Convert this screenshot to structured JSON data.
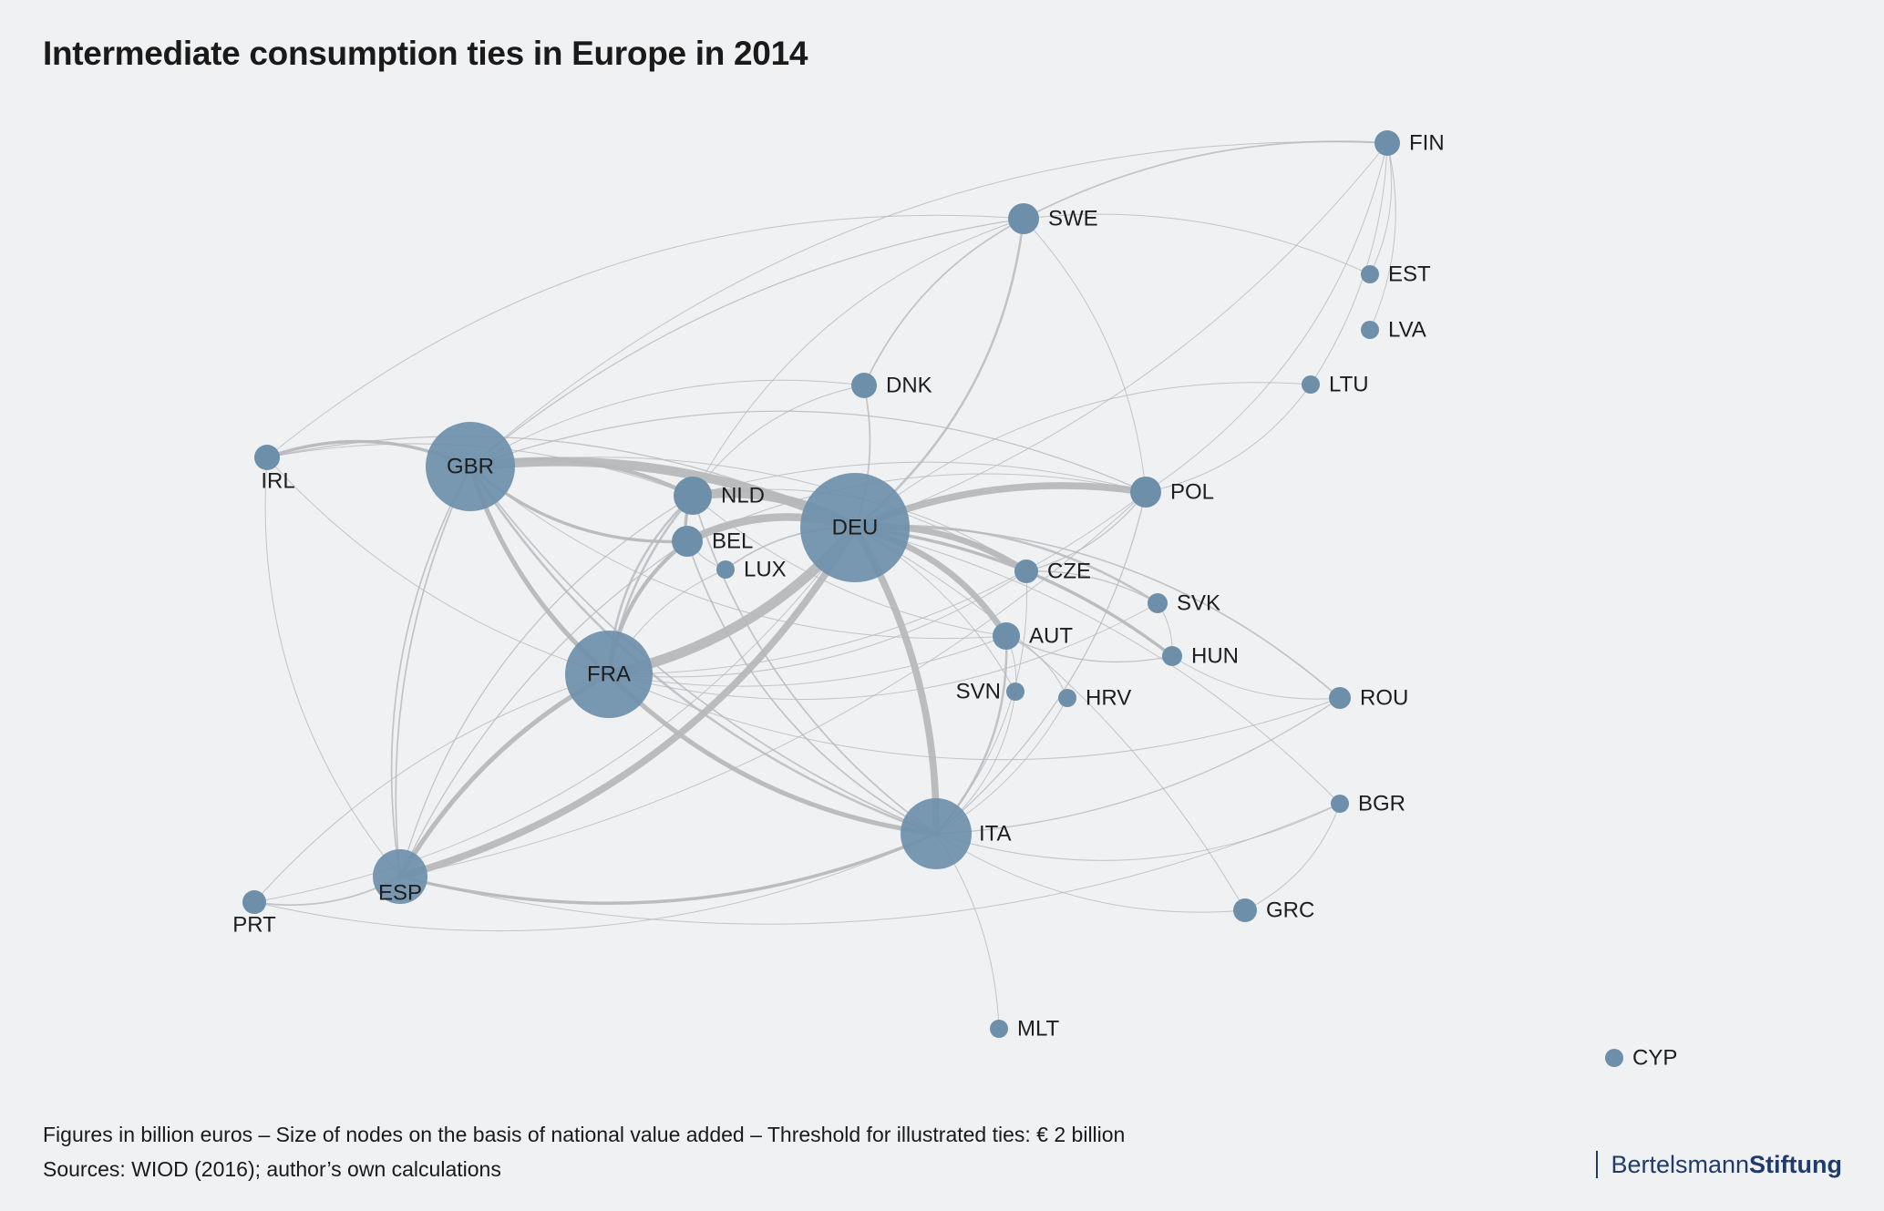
{
  "title": "Intermediate consumption ties in Europe in 2014",
  "footnote": {
    "line1": "Figures in billion euros – Size of nodes on the basis of national value added – Threshold for illustrated ties: € 2 billion",
    "line2": "Sources: WIOD (2016); author’s own calculations"
  },
  "brand": {
    "part1": "Bertelsmann",
    "part2": "Stiftung"
  },
  "colors": {
    "node": "#6e8faa",
    "edge": "#b6b8bb",
    "background": "#f0f1f3",
    "brand": "#1f3b6b"
  },
  "nodes": [
    {
      "id": "DEU",
      "label": "DEU",
      "size": 60
    },
    {
      "id": "GBR",
      "label": "GBR",
      "size": 49
    },
    {
      "id": "FRA",
      "label": "FRA",
      "size": 48
    },
    {
      "id": "ITA",
      "label": "ITA",
      "size": 39
    },
    {
      "id": "ESP",
      "label": "ESP",
      "size": 30
    },
    {
      "id": "NLD",
      "label": "NLD",
      "size": 21
    },
    {
      "id": "BEL",
      "label": "BEL",
      "size": 17
    },
    {
      "id": "SWE",
      "label": "SWE",
      "size": 17
    },
    {
      "id": "POL",
      "label": "POL",
      "size": 17
    },
    {
      "id": "AUT",
      "label": "AUT",
      "size": 15
    },
    {
      "id": "DNK",
      "label": "DNK",
      "size": 14
    },
    {
      "id": "FIN",
      "label": "FIN",
      "size": 14
    },
    {
      "id": "IRL",
      "label": "IRL",
      "size": 14
    },
    {
      "id": "PRT",
      "label": "PRT",
      "size": 13
    },
    {
      "id": "CZE",
      "label": "CZE",
      "size": 13
    },
    {
      "id": "GRC",
      "label": "GRC",
      "size": 13
    },
    {
      "id": "ROU",
      "label": "ROU",
      "size": 12
    },
    {
      "id": "HUN",
      "label": "HUN",
      "size": 11
    },
    {
      "id": "SVK",
      "label": "SVK",
      "size": 11
    },
    {
      "id": "LUX",
      "label": "LUX",
      "size": 10
    },
    {
      "id": "SVN",
      "label": "SVN",
      "size": 10
    },
    {
      "id": "HRV",
      "label": "HRV",
      "size": 10
    },
    {
      "id": "BGR",
      "label": "BGR",
      "size": 10
    },
    {
      "id": "EST",
      "label": "EST",
      "size": 10
    },
    {
      "id": "LVA",
      "label": "LVA",
      "size": 10
    },
    {
      "id": "LTU",
      "label": "LTU",
      "size": 10
    },
    {
      "id": "MLT",
      "label": "MLT",
      "size": 10
    },
    {
      "id": "CYP",
      "label": "CYP",
      "size": 10
    }
  ],
  "edges": [
    [
      "GBR",
      "DEU",
      12
    ],
    [
      "FRA",
      "DEU",
      13
    ],
    [
      "ESP",
      "DEU",
      9
    ],
    [
      "ITA",
      "DEU",
      9
    ],
    [
      "NLD",
      "DEU",
      12
    ],
    [
      "BEL",
      "DEU",
      10
    ],
    [
      "POL",
      "DEU",
      9
    ],
    [
      "CZE",
      "DEU",
      8
    ],
    [
      "AUT",
      "DEU",
      8
    ],
    [
      "GBR",
      "FRA",
      6
    ],
    [
      "GBR",
      "NLD",
      5
    ],
    [
      "GBR",
      "BEL",
      4
    ],
    [
      "FRA",
      "ESP",
      6
    ],
    [
      "FRA",
      "ITA",
      6
    ],
    [
      "FRA",
      "BEL",
      5
    ],
    [
      "FRA",
      "NLD",
      3
    ],
    [
      "ESP",
      "ITA",
      4
    ],
    [
      "GBR",
      "IRL",
      4
    ],
    [
      "GBR",
      "ESP",
      2
    ],
    [
      "GBR",
      "ITA",
      3
    ],
    [
      "ITA",
      "AUT",
      3
    ],
    [
      "DEU",
      "HUN",
      4
    ],
    [
      "DEU",
      "SVK",
      3
    ],
    [
      "DEU",
      "SWE",
      3
    ],
    [
      "DEU",
      "DNK",
      2
    ],
    [
      "DEU",
      "LUX",
      2
    ],
    [
      "DEU",
      "ROU",
      2
    ],
    [
      "DEU",
      "SVN",
      1
    ],
    [
      "NLD",
      "BEL",
      4
    ],
    [
      "NLD",
      "FRA",
      3
    ],
    [
      "SWE",
      "FIN",
      2
    ],
    [
      "SWE",
      "DNK",
      2
    ],
    [
      "SWE",
      "NLD",
      1
    ],
    [
      "SWE",
      "GBR",
      1.5
    ],
    [
      "SWE",
      "POL",
      1
    ],
    [
      "SWE",
      "IRL",
      0.8
    ],
    [
      "FIN",
      "DEU",
      1
    ],
    [
      "FIN",
      "EST",
      1
    ],
    [
      "FIN",
      "POL",
      1
    ],
    [
      "FIN",
      "LTU",
      1
    ],
    [
      "FIN",
      "LVA",
      0.8
    ],
    [
      "FIN",
      "GBR",
      0.8
    ],
    [
      "IRL",
      "FRA",
      1
    ],
    [
      "IRL",
      "DEU",
      1.5
    ],
    [
      "IRL",
      "ESP",
      1
    ],
    [
      "IRL",
      "NLD",
      1
    ],
    [
      "PRT",
      "ESP",
      2
    ],
    [
      "PRT",
      "DEU",
      1
    ],
    [
      "PRT",
      "FRA",
      1
    ],
    [
      "PRT",
      "ITA",
      1
    ],
    [
      "ESP",
      "NLD",
      1.5
    ],
    [
      "ESP",
      "BEL",
      1.5
    ],
    [
      "ESP",
      "GBR",
      2
    ],
    [
      "ITA",
      "SVN",
      1
    ],
    [
      "ITA",
      "HRV",
      1
    ],
    [
      "ITA",
      "GRC",
      1
    ],
    [
      "ITA",
      "BGR",
      1
    ],
    [
      "ITA",
      "ROU",
      1.5
    ],
    [
      "ITA",
      "POL",
      1.5
    ],
    [
      "ITA",
      "CZE",
      1
    ],
    [
      "ITA",
      "MLT",
      0.8
    ],
    [
      "ITA",
      "NLD",
      2
    ],
    [
      "ITA",
      "BEL",
      2
    ],
    [
      "ITA",
      "GBR",
      2
    ],
    [
      "POL",
      "CZE",
      1.5
    ],
    [
      "POL",
      "GBR",
      1.5
    ],
    [
      "POL",
      "NLD",
      1
    ],
    [
      "POL",
      "FRA",
      1
    ],
    [
      "POL",
      "LTU",
      1
    ],
    [
      "CZE",
      "SVK",
      1.5
    ],
    [
      "AUT",
      "HUN",
      1.5
    ],
    [
      "AUT",
      "HRV",
      1
    ],
    [
      "AUT",
      "SVN",
      1
    ],
    [
      "HUN",
      "ROU",
      1
    ],
    [
      "BGR",
      "GRC",
      0.8
    ],
    [
      "GRC",
      "DEU",
      1
    ],
    [
      "DNK",
      "GBR",
      1
    ],
    [
      "DNK",
      "NLD",
      1
    ],
    [
      "LUX",
      "BEL",
      1
    ],
    [
      "LUX",
      "FRA",
      1
    ],
    [
      "LTU",
      "DEU",
      1
    ],
    [
      "EST",
      "SWE",
      0.8
    ],
    [
      "SVK",
      "HUN",
      1
    ],
    [
      "ROU",
      "FRA",
      1
    ],
    [
      "BGR",
      "DEU",
      1
    ],
    [
      "BGR",
      "ESP",
      0.8
    ],
    [
      "GBR",
      "AUT",
      1
    ],
    [
      "FRA",
      "AUT",
      1
    ],
    [
      "FRA",
      "CZE",
      1
    ],
    [
      "FRA",
      "SVK",
      1
    ],
    [
      "ESP",
      "POL",
      1
    ],
    [
      "BEL",
      "POL",
      1
    ],
    [
      "NLD",
      "CZE",
      1
    ],
    [
      "NLD",
      "AUT",
      1
    ],
    [
      "GBR",
      "CZE",
      1
    ]
  ]
}
